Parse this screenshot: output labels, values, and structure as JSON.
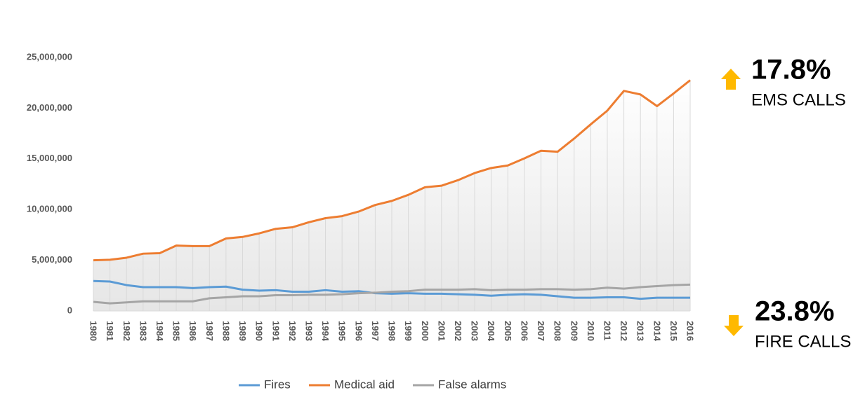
{
  "chart_data": {
    "type": "line",
    "categories": [
      "1980",
      "1981",
      "1982",
      "1983",
      "1984",
      "1985",
      "1986",
      "1987",
      "1988",
      "1989",
      "1990",
      "1991",
      "1992",
      "1993",
      "1994",
      "1995",
      "1996",
      "1997",
      "1998",
      "1999",
      "2000",
      "2001",
      "2002",
      "2003",
      "2004",
      "2005",
      "2006",
      "2007",
      "2008",
      "2009",
      "2010",
      "2011",
      "2012",
      "2013",
      "2014",
      "2015",
      "2016"
    ],
    "series": [
      {
        "name": "Fires",
        "color": "#5b9bd5",
        "values": [
          2950000,
          2900000,
          2550000,
          2350000,
          2350000,
          2350000,
          2250000,
          2350000,
          2400000,
          2100000,
          2000000,
          2050000,
          1900000,
          1900000,
          2050000,
          1900000,
          1950000,
          1750000,
          1700000,
          1750000,
          1700000,
          1700000,
          1650000,
          1600000,
          1500000,
          1600000,
          1650000,
          1600000,
          1450000,
          1300000,
          1300000,
          1350000,
          1350000,
          1200000,
          1300000,
          1300000,
          1300000
        ]
      },
      {
        "name": "Medical aid",
        "color": "#ed7d31",
        "values": [
          5000000,
          5050000,
          5250000,
          5650000,
          5700000,
          6450000,
          6400000,
          6400000,
          7150000,
          7300000,
          7650000,
          8100000,
          8250000,
          8750000,
          9150000,
          9350000,
          9800000,
          10450000,
          10850000,
          11450000,
          12200000,
          12350000,
          12900000,
          13600000,
          14100000,
          14350000,
          15050000,
          15800000,
          15700000,
          17000000,
          18400000,
          19750000,
          21700000,
          21350000,
          20200000,
          21450000,
          22750000
        ]
      },
      {
        "name": "False alarms",
        "color": "#a5a5a5",
        "values": [
          900000,
          750000,
          850000,
          950000,
          950000,
          950000,
          950000,
          1250000,
          1350000,
          1450000,
          1450000,
          1550000,
          1550000,
          1600000,
          1600000,
          1650000,
          1750000,
          1800000,
          1900000,
          1950000,
          2100000,
          2100000,
          2100000,
          2150000,
          2050000,
          2100000,
          2100000,
          2150000,
          2150000,
          2100000,
          2150000,
          2300000,
          2200000,
          2350000,
          2450000,
          2550000,
          2600000
        ]
      }
    ],
    "ylim": [
      0,
      25000000
    ],
    "yticks": [
      0,
      {
        "value": 5000000,
        "label": "5,000,000"
      },
      {
        "value": 10000000,
        "label": "10,000,000"
      },
      {
        "value": 15000000,
        "label": "15,000,000"
      },
      {
        "value": 20000000,
        "label": "20,000,000"
      },
      {
        "value": 25000000,
        "label": "25,000,000"
      }
    ],
    "legend": "bottom",
    "annotations": [
      {
        "value": "17.8%",
        "text": "EMS CALLS",
        "direction": "up",
        "color": "#ffb900"
      },
      {
        "value": "23.8%",
        "text": "FIRE CALLS",
        "direction": "down",
        "color": "#ffb900"
      }
    ]
  }
}
